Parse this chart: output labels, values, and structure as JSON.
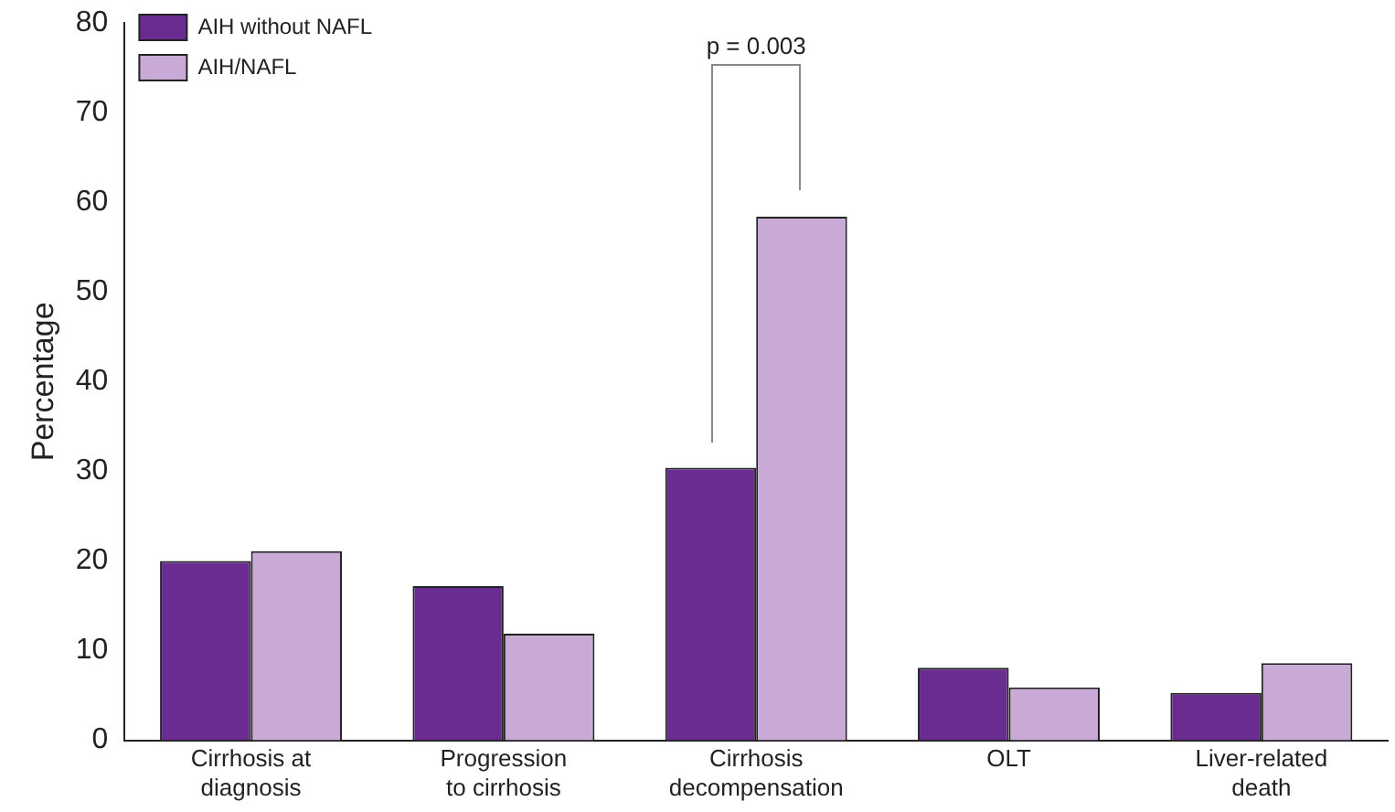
{
  "chart_data": {
    "type": "bar",
    "ylabel": "Percentage",
    "categories": [
      "Cirrhosis at\ndiagnosis",
      "Progression\nto cirrhosis",
      "Cirrhosis\ndecompensation",
      "OLT",
      "Liver-related\ndeath"
    ],
    "series": [
      {
        "name": "AIH without NAFL",
        "color": "#6a2c91",
        "values": [
          20.0,
          17.2,
          30.4,
          8.1,
          5.3
        ]
      },
      {
        "name": "AIH/NAFL",
        "color": "#c9a9d6",
        "values": [
          21.1,
          11.9,
          58.4,
          5.9,
          8.6
        ]
      }
    ],
    "ylim": [
      0,
      80
    ],
    "yticks": [
      0,
      10,
      20,
      30,
      40,
      50,
      60,
      70,
      80
    ],
    "grid": false,
    "legend": "top left",
    "annotations": [
      "p = 0.003"
    ]
  }
}
